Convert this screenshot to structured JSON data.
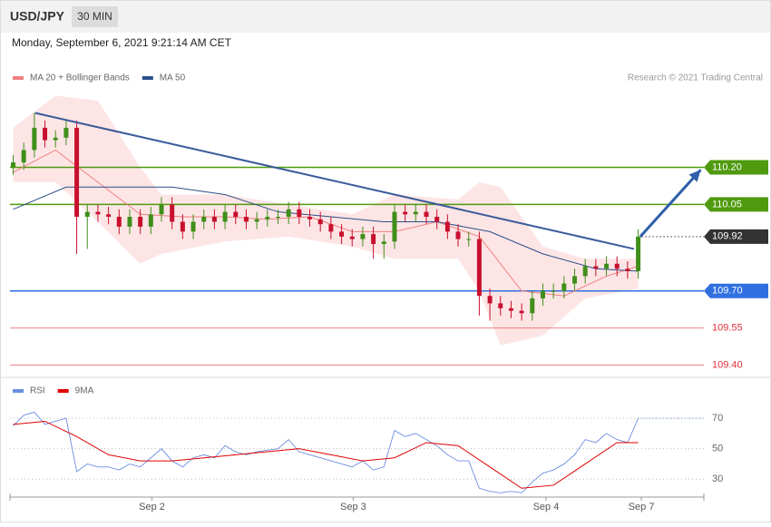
{
  "header": {
    "symbol": "USD/JPY",
    "interval": "30 MIN",
    "timestamp": "Monday, September 6, 2021 9:21:14 AM CET",
    "credit": "Research © 2021 Trading Central"
  },
  "chart_data": [
    {
      "type": "candlestick",
      "xlim": [
        -0.3,
        65.2
      ],
      "ylim": [
        109.38,
        110.51
      ],
      "up_color": "#3f8f1a",
      "down_color": "#c8102e",
      "open": [
        110.2,
        110.22,
        110.27,
        110.36,
        110.31,
        110.32,
        110.36,
        110.0,
        110.02,
        110.01,
        110.0,
        109.96,
        110.0,
        109.96,
        110.01,
        110.05,
        109.98,
        109.94,
        109.98,
        110.0,
        109.98,
        110.02,
        110.0,
        109.98,
        109.99,
        110.0,
        110.0,
        110.03,
        110.0,
        109.99,
        109.97,
        109.94,
        109.92,
        109.91,
        109.93,
        109.89,
        109.9,
        110.02,
        110.01,
        110.02,
        110.0,
        109.98,
        109.94,
        109.91,
        109.91,
        109.68,
        109.65,
        109.63,
        109.62,
        109.61,
        109.67,
        109.7,
        109.7,
        109.73,
        109.76,
        109.8,
        109.79,
        109.81,
        109.79,
        109.78
      ],
      "high": [
        110.25,
        110.3,
        110.42,
        110.39,
        110.35,
        110.39,
        110.39,
        110.05,
        110.05,
        110.04,
        110.03,
        110.03,
        110.03,
        110.04,
        110.08,
        110.08,
        110.01,
        110.01,
        110.03,
        110.03,
        110.05,
        110.05,
        110.03,
        110.02,
        110.03,
        110.03,
        110.06,
        110.06,
        110.03,
        110.02,
        110.0,
        109.97,
        109.95,
        109.96,
        109.96,
        109.93,
        110.05,
        110.05,
        110.05,
        110.05,
        110.03,
        110.01,
        109.97,
        109.94,
        109.94,
        109.71,
        109.68,
        109.66,
        109.65,
        109.7,
        109.73,
        109.73,
        109.76,
        109.79,
        109.83,
        109.83,
        109.84,
        109.84,
        109.82,
        109.95
      ],
      "low": [
        110.17,
        110.19,
        110.24,
        110.28,
        110.28,
        110.29,
        109.85,
        109.87,
        109.98,
        109.97,
        109.93,
        109.93,
        109.93,
        109.93,
        109.98,
        109.95,
        109.91,
        109.91,
        109.95,
        109.95,
        109.95,
        109.97,
        109.95,
        109.95,
        109.96,
        109.97,
        109.97,
        109.97,
        109.96,
        109.94,
        109.91,
        109.89,
        109.88,
        109.88,
        109.83,
        109.83,
        109.87,
        109.98,
        109.98,
        109.97,
        109.95,
        109.91,
        109.88,
        109.88,
        109.6,
        109.58,
        109.6,
        109.59,
        109.58,
        109.58,
        109.64,
        109.67,
        109.67,
        109.7,
        109.73,
        109.76,
        109.76,
        109.76,
        109.75,
        109.75
      ],
      "close": [
        110.22,
        110.27,
        110.36,
        110.31,
        110.32,
        110.36,
        110.0,
        110.02,
        110.01,
        110.0,
        109.96,
        110.0,
        109.96,
        110.01,
        110.05,
        109.98,
        109.94,
        109.98,
        110.0,
        109.98,
        110.02,
        110.0,
        109.98,
        109.99,
        110.0,
        110.0,
        110.03,
        110.0,
        109.99,
        109.97,
        109.94,
        109.92,
        109.91,
        109.93,
        109.89,
        109.9,
        110.02,
        110.01,
        110.02,
        110.0,
        109.98,
        109.94,
        109.91,
        109.91,
        109.68,
        109.65,
        109.63,
        109.62,
        109.61,
        109.67,
        109.7,
        109.7,
        109.73,
        109.76,
        109.8,
        109.79,
        109.81,
        109.79,
        109.78,
        109.92
      ],
      "series": [
        {
          "name": "MA 20 + Bollinger Bands",
          "color": "#f08080",
          "x": [
            0,
            4,
            8,
            12,
            16,
            20,
            24,
            28,
            32,
            36,
            40,
            44,
            48,
            52,
            56,
            59
          ],
          "values": [
            110.18,
            110.27,
            110.14,
            110.01,
            110.0,
            110.0,
            109.99,
            110.0,
            109.94,
            109.94,
            109.98,
            109.92,
            109.7,
            109.68,
            109.76,
            109.8
          ],
          "bands": {
            "color": "#fde0e0",
            "x": [
              0,
              4,
              8,
              12,
              14,
              20,
              26,
              32,
              36,
              42,
              44,
              46,
              50,
              54,
              59
            ],
            "upper": [
              110.36,
              110.49,
              110.47,
              110.2,
              110.09,
              110.09,
              110.05,
              110.01,
              110.09,
              110.07,
              110.14,
              110.12,
              109.88,
              109.83,
              109.83
            ],
            "lower": [
              110.14,
              110.14,
              109.98,
              109.81,
              109.85,
              109.9,
              109.92,
              109.88,
              109.83,
              109.83,
              109.7,
              109.48,
              109.52,
              109.67,
              109.71
            ]
          }
        },
        {
          "name": "MA 50",
          "color": "#2c4f8a",
          "x": [
            0,
            5,
            10,
            15,
            20,
            25,
            30,
            35,
            40,
            45,
            50,
            55,
            59
          ],
          "values": [
            110.03,
            110.12,
            110.12,
            110.12,
            110.09,
            110.02,
            110.0,
            109.98,
            109.98,
            109.94,
            109.85,
            109.79,
            109.78
          ]
        }
      ],
      "trendline": {
        "color": "#3a5a9a",
        "x": [
          2.07,
          58.6
        ],
        "values": [
          110.42,
          109.87
        ]
      },
      "arrow": {
        "color": "#2f5fa8",
        "x": [
          59.2,
          64.9
        ],
        "values": [
          109.92,
          110.19
        ]
      },
      "levels": [
        {
          "value": 110.2,
          "label": "110.20",
          "color": "#4f9a0f",
          "tag": true,
          "style": "solid"
        },
        {
          "value": 110.05,
          "label": "110.05",
          "color": "#4f9a0f",
          "tag": true,
          "style": "solid"
        },
        {
          "value": 109.92,
          "label": "109.92",
          "color": "#333333",
          "tag": true,
          "style": "dotted"
        },
        {
          "value": 109.7,
          "label": "109.70",
          "color": "#2f6fe0",
          "tag": true,
          "style": "solid"
        },
        {
          "value": 109.55,
          "label": "109.55",
          "color": "#e0303a",
          "tag": false,
          "style": "solid"
        },
        {
          "value": 109.4,
          "label": "109.40",
          "color": "#e0303a",
          "tag": false,
          "style": "solid"
        }
      ]
    },
    {
      "type": "line",
      "xlim": [
        -0.3,
        65.2
      ],
      "ylim": [
        20,
        82
      ],
      "yticks": [
        30,
        50,
        70
      ],
      "xticks": [
        {
          "value": 13.1,
          "label": "Sep 2"
        },
        {
          "value": 32.1,
          "label": "Sep 3"
        },
        {
          "value": 50.3,
          "label": "Sep 4"
        },
        {
          "value": 59.3,
          "label": "Sep 7"
        }
      ],
      "series": [
        {
          "name": "RSI",
          "color": "#6b8ee0",
          "x": [
            0,
            1,
            2,
            3,
            4,
            5,
            6,
            7,
            8,
            9,
            10,
            11,
            12,
            13,
            14,
            15,
            16,
            17,
            18,
            19,
            20,
            21,
            22,
            23,
            24,
            25,
            26,
            27,
            28,
            29,
            30,
            31,
            32,
            33,
            34,
            35,
            36,
            37,
            38,
            39,
            40,
            41,
            42,
            43,
            44,
            45,
            46,
            47,
            48,
            49,
            50,
            51,
            52,
            53,
            54,
            55,
            56,
            57,
            58,
            59
          ],
          "values": [
            65,
            72,
            74,
            66,
            68,
            70,
            35,
            40,
            38,
            38,
            36,
            40,
            38,
            44,
            50,
            42,
            38,
            44,
            46,
            44,
            52,
            48,
            46,
            48,
            49,
            50,
            56,
            48,
            46,
            44,
            42,
            40,
            38,
            42,
            36,
            38,
            62,
            58,
            60,
            56,
            52,
            46,
            42,
            42,
            24,
            22,
            21,
            22,
            21,
            28,
            34,
            36,
            40,
            46,
            56,
            54,
            60,
            56,
            54,
            70
          ]
        },
        {
          "name": "9MA",
          "color": "#e00000",
          "x": [
            0,
            3,
            6,
            9,
            12,
            15,
            18,
            21,
            24,
            27,
            30,
            33,
            36,
            39,
            42,
            45,
            48,
            51,
            54,
            57,
            59
          ],
          "values": [
            66,
            68,
            58,
            46,
            42,
            42,
            44,
            46,
            48,
            50,
            46,
            42,
            44,
            54,
            52,
            38,
            24,
            26,
            40,
            54,
            54
          ]
        }
      ]
    }
  ]
}
